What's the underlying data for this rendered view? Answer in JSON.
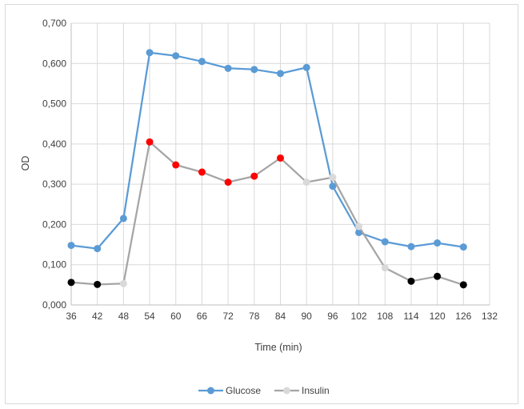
{
  "chart_data": {
    "type": "line",
    "xlabel": "Time (min)",
    "ylabel": "OD",
    "x_ticks": [
      "36",
      "42",
      "48",
      "54",
      "60",
      "66",
      "72",
      "78",
      "84",
      "90",
      "96",
      "102",
      "108",
      "114",
      "120",
      "126",
      "132"
    ],
    "y_ticks": [
      "0,000",
      "0,100",
      "0,200",
      "0,300",
      "0,400",
      "0,500",
      "0,600",
      "0,700"
    ],
    "xlim": [
      36,
      132
    ],
    "ylim": [
      0,
      0.7
    ],
    "grid": true,
    "legend": "bottom",
    "series": [
      {
        "name": "Glucose",
        "color": "#5b9bd5",
        "x": [
          36,
          42,
          48,
          54,
          60,
          66,
          72,
          78,
          84,
          90,
          96,
          102,
          108,
          114,
          120,
          126
        ],
        "y": [
          0.148,
          0.14,
          0.215,
          0.627,
          0.619,
          0.605,
          0.588,
          0.585,
          0.575,
          0.59,
          0.295,
          0.18,
          0.157,
          0.145,
          0.154,
          0.144
        ]
      },
      {
        "name": "Insulin",
        "color": "#a5a5a5",
        "x": [
          36,
          42,
          48,
          54,
          60,
          66,
          72,
          78,
          84,
          90,
          96,
          102,
          108,
          114,
          120,
          126
        ],
        "y": [
          0.056,
          0.051,
          0.053,
          0.405,
          0.348,
          0.33,
          0.305,
          0.32,
          0.365,
          0.305,
          0.317,
          0.195,
          0.092,
          0.059,
          0.071,
          0.05
        ],
        "marker_colors": [
          "#000000",
          "#000000",
          "#d9d9d9",
          "#ff0000",
          "#ff0000",
          "#ff0000",
          "#ff0000",
          "#ff0000",
          "#ff0000",
          "#d9d9d9",
          "#d9d9d9",
          "#d9d9d9",
          "#d9d9d9",
          "#000000",
          "#000000",
          "#000000"
        ]
      }
    ]
  }
}
